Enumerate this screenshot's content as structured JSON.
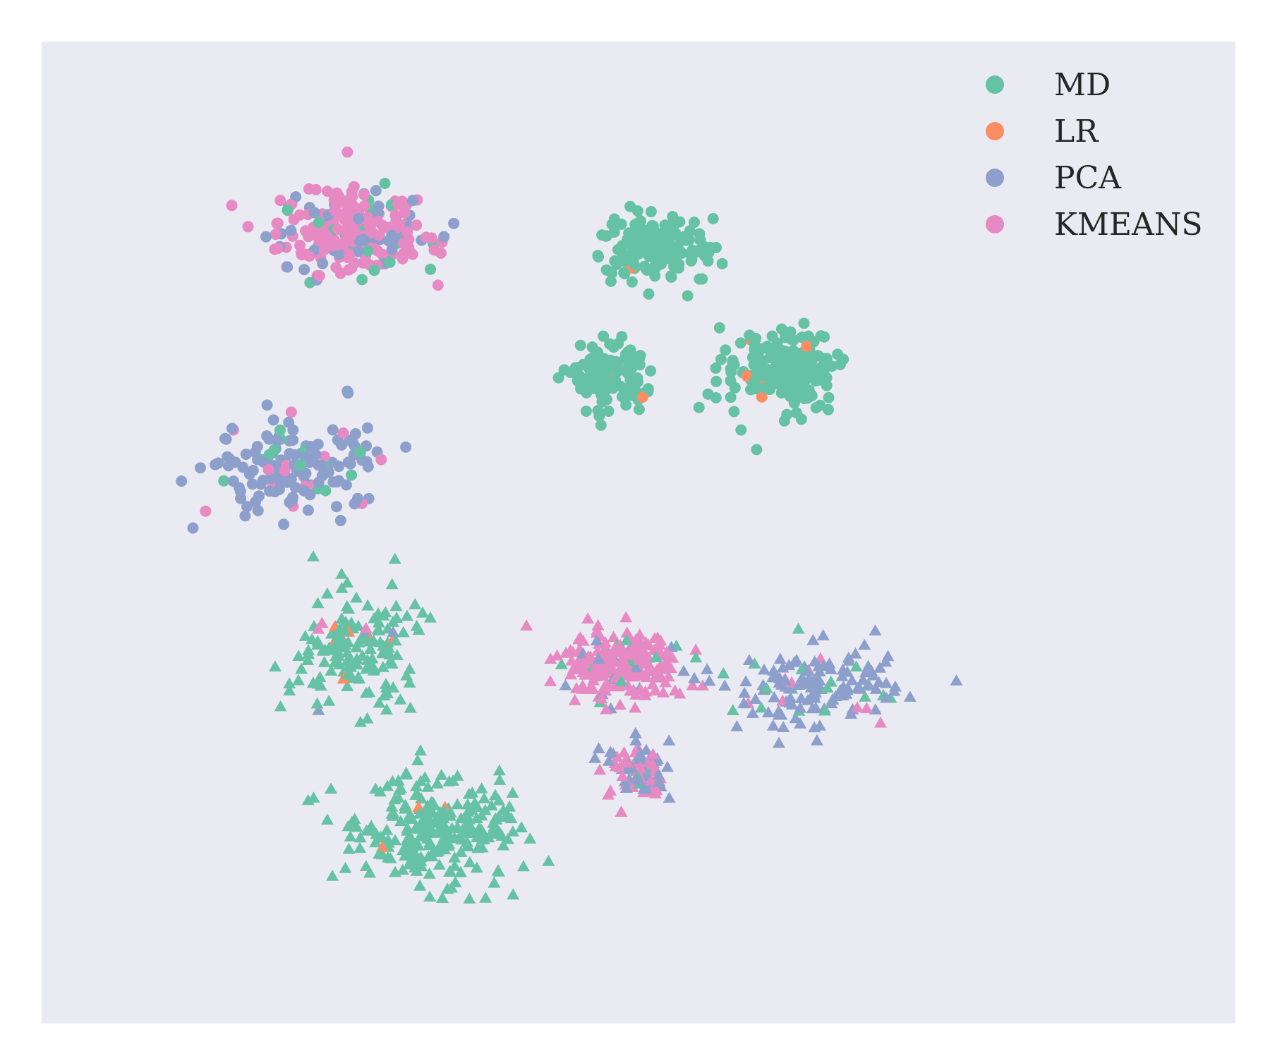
{
  "chart_data": {
    "type": "scatter",
    "title": "",
    "xlabel": "",
    "ylabel": "",
    "xlim": [
      0,
      100
    ],
    "ylim": [
      0,
      100
    ],
    "grid": false,
    "axes_visible": false,
    "background": "#eaeaf2",
    "legend": {
      "placement": "top-right"
    },
    "series": [
      {
        "name": "MD",
        "color": "#66c2a5"
      },
      {
        "name": "LR",
        "color": "#fc8d62"
      },
      {
        "name": "PCA",
        "color": "#8da0cb"
      },
      {
        "name": "KMEANS",
        "color": "#e78ac3"
      }
    ],
    "marker_groups": [
      {
        "marker": "circle",
        "description": "upper clusters"
      },
      {
        "marker": "triangle",
        "description": "lower clusters"
      }
    ],
    "clusters": [
      {
        "marker": "circle",
        "center": [
          22,
          80
        ],
        "spread": [
          9,
          6
        ],
        "n": 260,
        "mix": [
          0.06,
          0,
          0.28,
          0.66
        ]
      },
      {
        "marker": "circle",
        "center": [
          14,
          43
        ],
        "spread": [
          11,
          7
        ],
        "n": 150,
        "mix": [
          0.1,
          0,
          0.82,
          0.08
        ]
      },
      {
        "marker": "circle",
        "center": [
          62,
          78
        ],
        "spread": [
          6,
          5
        ],
        "n": 170,
        "mix": [
          0.98,
          0.02,
          0,
          0
        ]
      },
      {
        "marker": "circle",
        "center": [
          56,
          57
        ],
        "spread": [
          5,
          5
        ],
        "n": 110,
        "mix": [
          0.99,
          0.01,
          0,
          0
        ]
      },
      {
        "marker": "circle",
        "center": [
          79,
          58
        ],
        "spread": [
          7,
          6
        ],
        "n": 190,
        "mix": [
          0.96,
          0.03,
          0,
          0.01
        ]
      },
      {
        "marker": "triangle",
        "center": [
          22,
          14
        ],
        "spread": [
          8,
          8
        ],
        "n": 150,
        "mix": [
          0.95,
          0.03,
          0.01,
          0.01
        ]
      },
      {
        "marker": "triangle",
        "center": [
          33,
          -15
        ],
        "spread": [
          10,
          8
        ],
        "n": 260,
        "mix": [
          0.98,
          0.02,
          0,
          0
        ]
      },
      {
        "marker": "triangle",
        "center": [
          58,
          12
        ],
        "spread": [
          7,
          5
        ],
        "n": 230,
        "mix": [
          0.07,
          0,
          0.08,
          0.85
        ]
      },
      {
        "marker": "triangle",
        "center": [
          60,
          -5
        ],
        "spread": [
          4,
          4
        ],
        "n": 90,
        "mix": [
          0.05,
          0,
          0.5,
          0.45
        ]
      },
      {
        "marker": "triangle",
        "center": [
          83,
          8
        ],
        "spread": [
          10,
          6
        ],
        "n": 150,
        "mix": [
          0.12,
          0,
          0.8,
          0.08
        ]
      }
    ]
  }
}
